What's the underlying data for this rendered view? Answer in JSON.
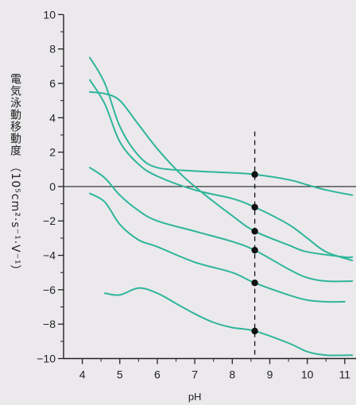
{
  "chart_data": {
    "type": "line",
    "title": "",
    "xlabel": "pH",
    "ylabel": "電気泳動移動度 （10⁵cm²·s⁻¹·V⁻¹）",
    "xlim": [
      3.5,
      11.3
    ],
    "ylim": [
      -10.3,
      10.2
    ],
    "x_ticks": [
      4,
      5,
      6,
      7,
      8,
      9,
      10,
      11
    ],
    "y_ticks": [
      10,
      8,
      6,
      4,
      2,
      0,
      -2,
      -4,
      -6,
      -8,
      -10
    ],
    "y_tick_labels": [
      "10",
      "8",
      "6",
      "4",
      "2",
      "0",
      "−2",
      "−4",
      "−6",
      "−8",
      "−10"
    ],
    "grid": false,
    "line_color": "#2fb59a",
    "marker_color": "#111111",
    "reference_line": {
      "x": 8.6,
      "style": "dashed"
    },
    "series": [
      {
        "x": [
          4.2,
          4.6,
          5.0,
          5.5,
          6.0,
          7.0,
          8.0,
          8.6,
          9.5,
          10.0,
          10.5,
          11.2
        ],
        "y": [
          7.5,
          6.0,
          3.5,
          1.8,
          1.1,
          0.9,
          0.8,
          0.7,
          0.4,
          0.1,
          -0.2,
          -0.5
        ]
      },
      {
        "x": [
          4.2,
          4.6,
          5.0,
          5.5,
          6.0,
          7.0,
          8.0,
          8.6,
          9.5,
          10.0,
          10.5,
          11.2
        ],
        "y": [
          6.2,
          4.8,
          2.6,
          1.3,
          0.6,
          -0.2,
          -0.7,
          -1.2,
          -2.2,
          -3.0,
          -3.8,
          -4.3
        ]
      },
      {
        "x": [
          4.2,
          4.6,
          5.0,
          5.5,
          6.0,
          6.5,
          7.0,
          8.0,
          8.6,
          9.5,
          10.0,
          11.0,
          11.2
        ],
        "y": [
          5.5,
          5.4,
          5.0,
          3.6,
          2.2,
          1.0,
          0.0,
          -1.7,
          -2.6,
          -3.4,
          -3.8,
          -4.1,
          -4.1
        ]
      },
      {
        "x": [
          4.2,
          4.6,
          5.0,
          5.5,
          6.0,
          7.0,
          8.0,
          8.6,
          9.5,
          10.0,
          10.5,
          11.2
        ],
        "y": [
          1.1,
          0.5,
          -0.5,
          -1.4,
          -2.0,
          -2.6,
          -3.2,
          -3.7,
          -4.8,
          -5.3,
          -5.5,
          -5.5
        ]
      },
      {
        "x": [
          4.2,
          4.6,
          5.0,
          5.5,
          6.0,
          7.0,
          8.0,
          8.6,
          9.5,
          10.0,
          10.5,
          11.0
        ],
        "y": [
          -0.4,
          -0.9,
          -2.2,
          -3.1,
          -3.5,
          -4.4,
          -5.0,
          -5.6,
          -6.3,
          -6.6,
          -6.7,
          -6.7
        ]
      },
      {
        "x": [
          4.6,
          5.0,
          5.5,
          6.0,
          6.5,
          7.0,
          7.5,
          8.0,
          8.6,
          9.5,
          10.0,
          10.5,
          11.2
        ],
        "y": [
          -6.2,
          -6.3,
          -5.9,
          -6.2,
          -6.8,
          -7.4,
          -7.9,
          -8.2,
          -8.4,
          -9.1,
          -9.6,
          -9.8,
          -9.8
        ]
      }
    ],
    "markers": [
      {
        "x": 8.6,
        "y": 0.7
      },
      {
        "x": 8.6,
        "y": -1.2
      },
      {
        "x": 8.6,
        "y": -2.6
      },
      {
        "x": 8.6,
        "y": -3.7
      },
      {
        "x": 8.6,
        "y": -5.6
      },
      {
        "x": 8.6,
        "y": -8.4
      }
    ]
  }
}
